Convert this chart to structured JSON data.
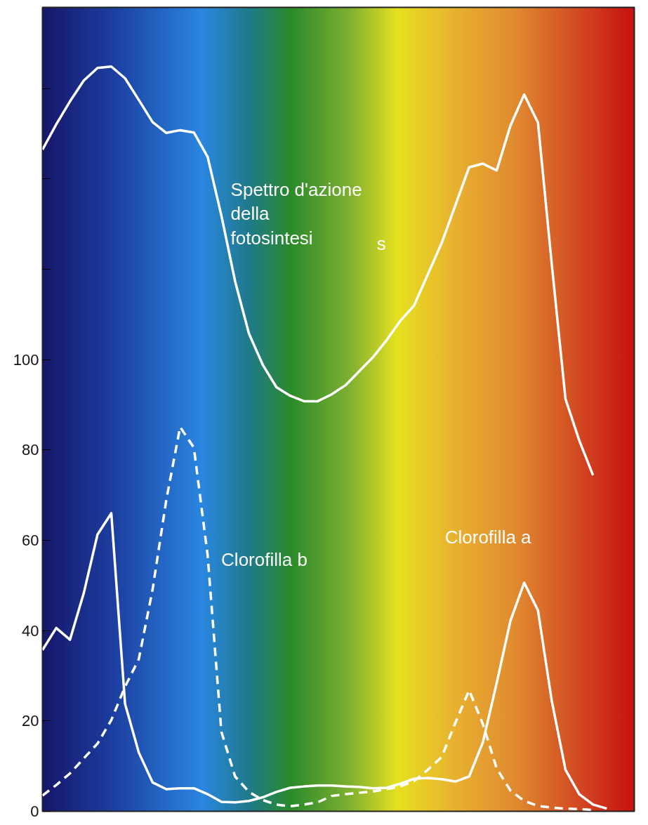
{
  "chart_data": {
    "type": "line",
    "categories": [
      null,
      null,
      null,
      null,
      null,
      null,
      null,
      null,
      null,
      null,
      null,
      null,
      null,
      null,
      null,
      null,
      null,
      null,
      null,
      null,
      null,
      null,
      null,
      null,
      null,
      null,
      null,
      null,
      null,
      null,
      null,
      null,
      null,
      null,
      null,
      null,
      null,
      null,
      null,
      null,
      null,
      null,
      null,
      null
    ],
    "series": [
      {
        "name": "Spettro d'azione\ndella\nfotosintesi",
        "color": "#ffffff",
        "line_style": "solid",
        "values": [
          146.5,
          152.1,
          157.2,
          161.8,
          164.6,
          164.9,
          162.3,
          157.5,
          152.6,
          150.2,
          150.8,
          150.3,
          144.9,
          131.9,
          117.3,
          105.8,
          98.9,
          93.9,
          92.0,
          90.8,
          90.8,
          92.3,
          94.3,
          97.4,
          100.5,
          104.3,
          108.6,
          112,
          118.9,
          125.8,
          134.2,
          142.6,
          143.4,
          141.9,
          151.8,
          158.7,
          152.5,
          121.2,
          91.3,
          82.1,
          74.4,
          null,
          null,
          null
        ]
      },
      {
        "name": "Clorofilla b",
        "color": "#ffffff",
        "line_style": "dashed",
        "values": [
          3.5,
          5.8,
          8.4,
          11.7,
          15.0,
          20.2,
          27.6,
          33.7,
          49.1,
          69.0,
          85.1,
          80.5,
          56.7,
          17.6,
          7.7,
          4.3,
          2.5,
          1.5,
          1.1,
          1.5,
          2.0,
          3.4,
          3.8,
          4.1,
          4.4,
          4.9,
          5.5,
          6.7,
          9.2,
          12.0,
          19.6,
          26.8,
          19.3,
          9.5,
          4.6,
          2.3,
          1.2,
          0.8,
          0.6,
          0.5,
          0.3,
          null,
          null,
          null
        ]
      },
      {
        "name": "Clorofilla a",
        "color": "#ffffff",
        "line_style": "solid",
        "values": [
          35.7,
          40.6,
          38.0,
          48.3,
          61.3,
          66,
          23.8,
          13.0,
          6.4,
          4.9,
          5.1,
          5.1,
          3.8,
          2.1,
          2.0,
          2.3,
          3.1,
          4.3,
          5.2,
          5.5,
          5.7,
          5.7,
          5.5,
          5.4,
          5.1,
          5.2,
          6.1,
          7.2,
          7.4,
          7.1,
          6.6,
          7.7,
          15.3,
          28.4,
          42.2,
          50.6,
          44.5,
          24.5,
          9.2,
          3.8,
          1.5,
          0.6,
          null,
          null
        ]
      }
    ],
    "annotations": [
      "s"
    ],
    "ylim": [
      0,
      178
    ],
    "yticks": [
      0,
      20,
      40,
      60,
      80,
      100,
      {
        "value": 120,
        "label": null
      },
      {
        "value": 140,
        "label": null
      },
      {
        "value": 160,
        "label": null
      }
    ],
    "grid": false,
    "marker": "none",
    "tick_labels": "y"
  }
}
